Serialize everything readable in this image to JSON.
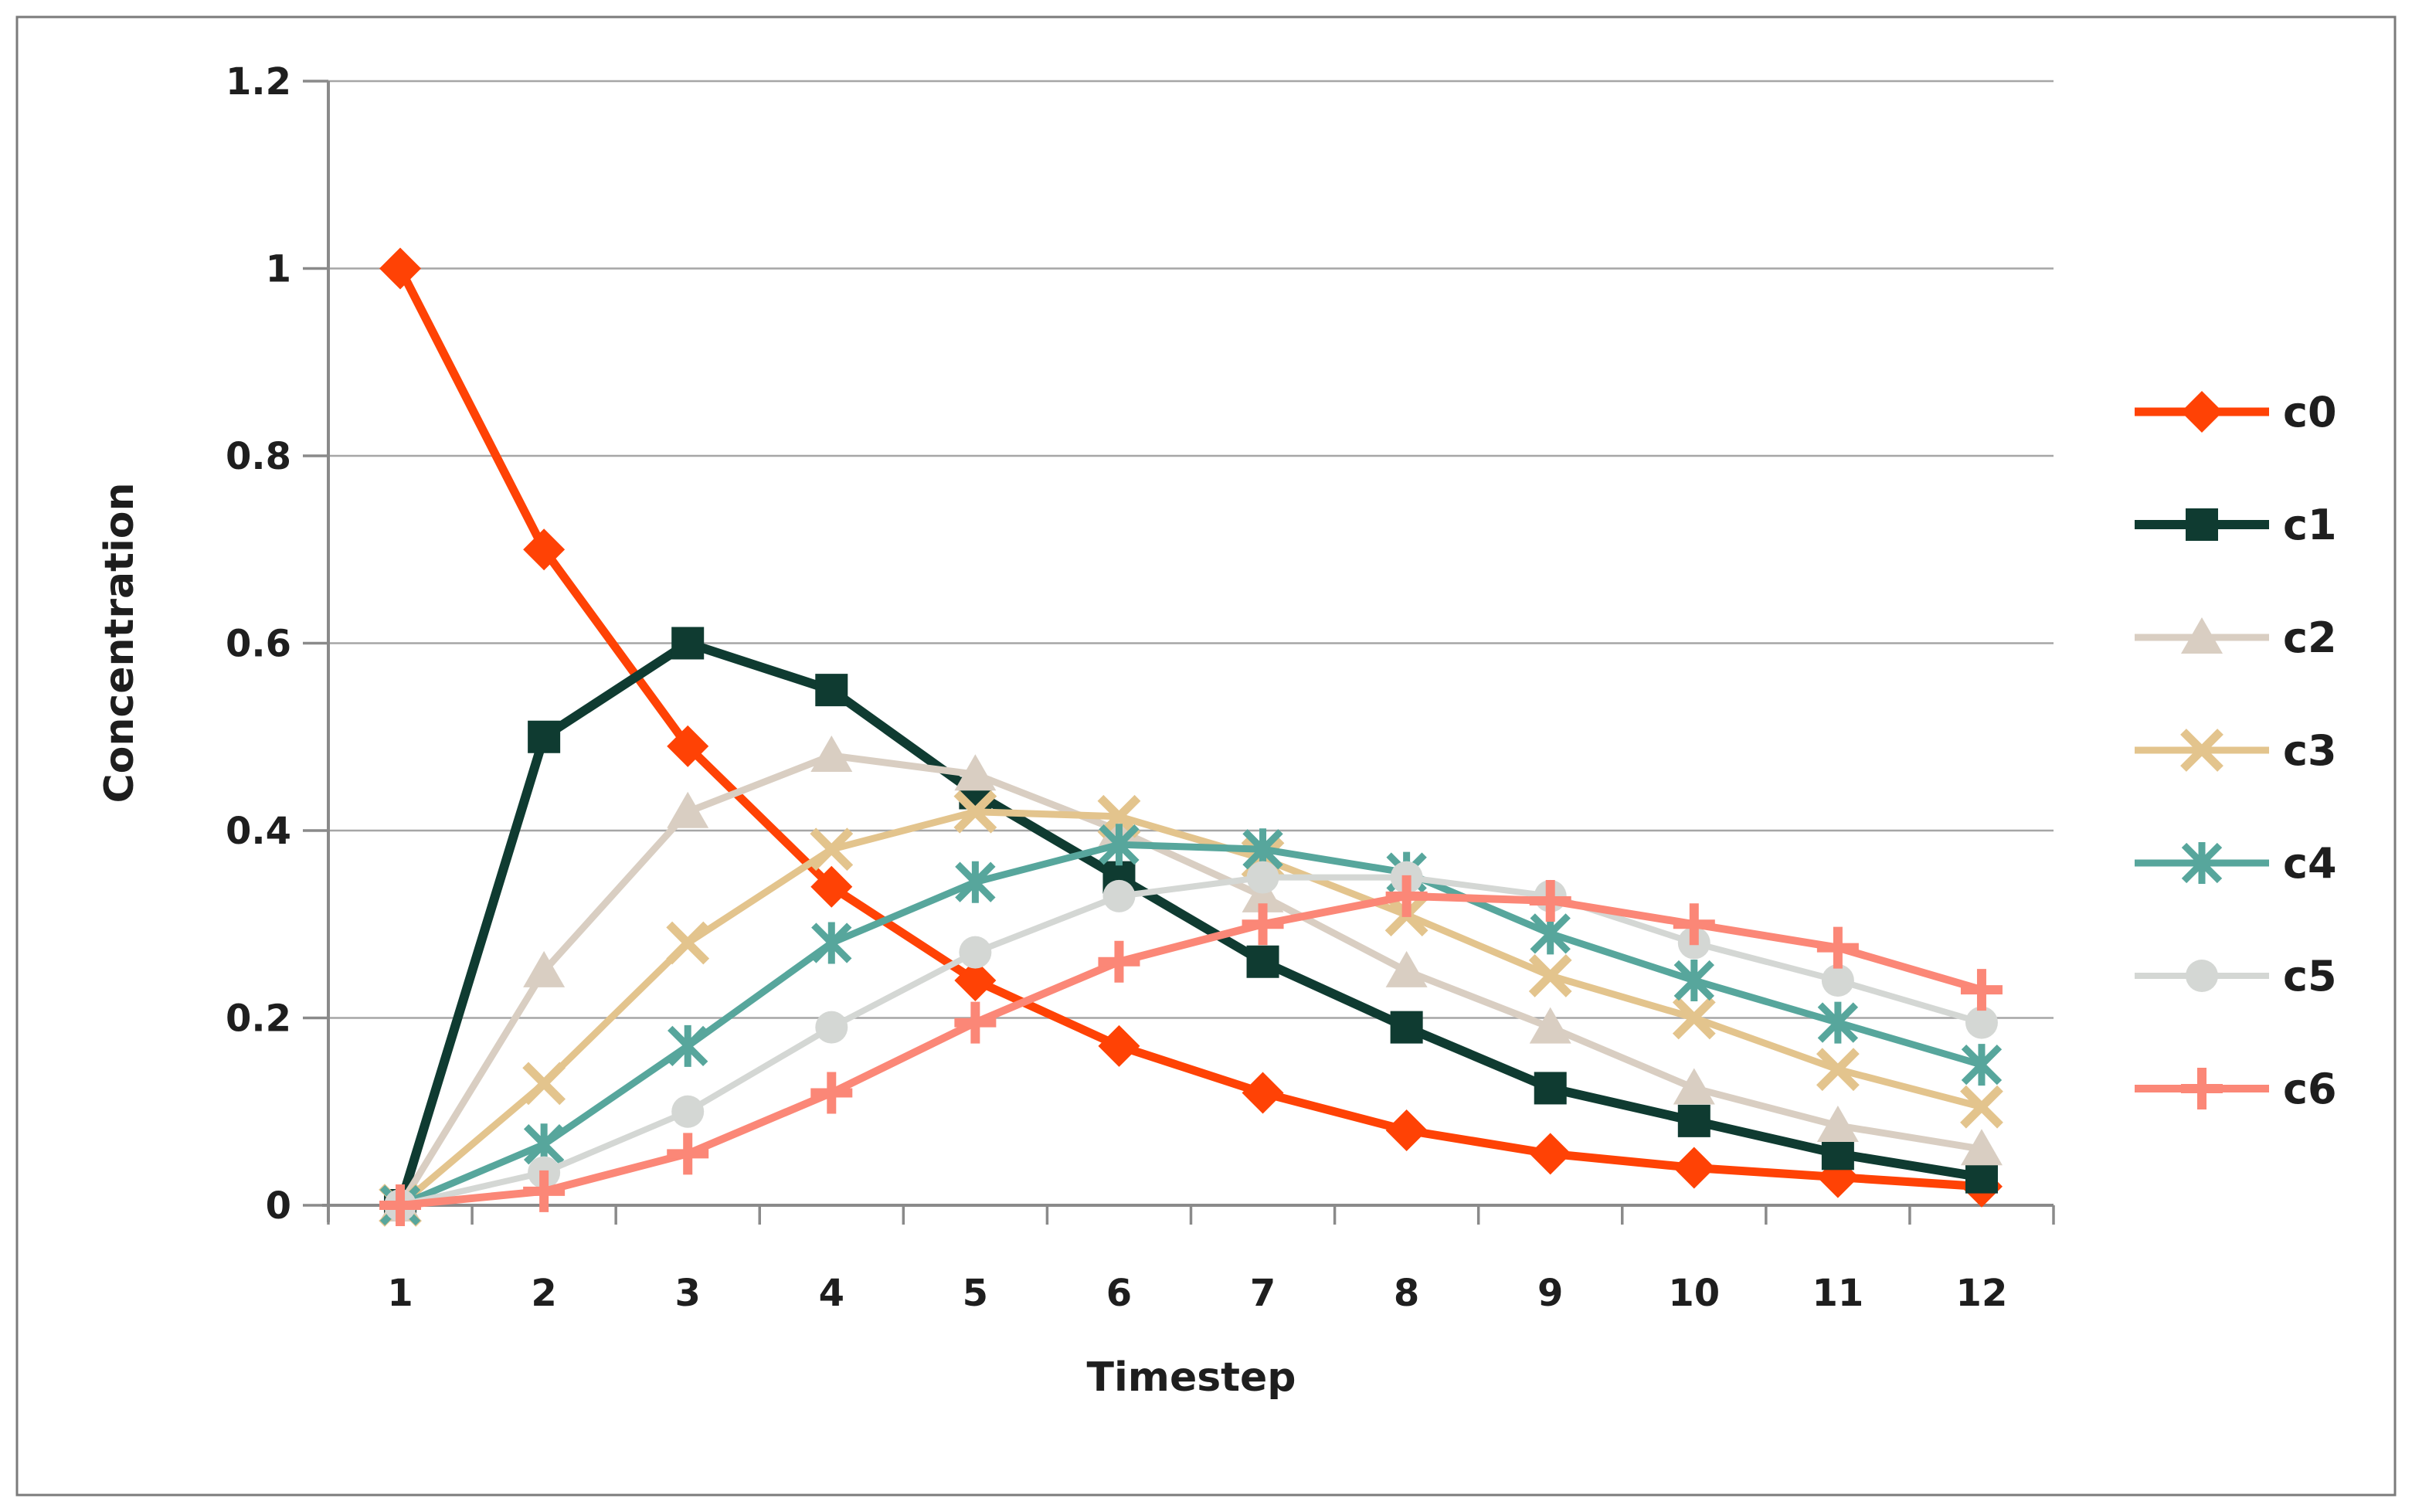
{
  "chart_data": {
    "type": "line",
    "title": "",
    "xlabel": "Timestep",
    "ylabel": "Concentration",
    "x": [
      1,
      2,
      3,
      4,
      5,
      6,
      7,
      8,
      9,
      10,
      11,
      12
    ],
    "xtick_labels": [
      "1",
      "2",
      "3",
      "4",
      "5",
      "6",
      "7",
      "8",
      "9",
      "10",
      "11",
      "12"
    ],
    "ylim": [
      0,
      1.2
    ],
    "ytick_step": 0.2,
    "ytick_labels": [
      "0",
      "0.2",
      "0.4",
      "0.6",
      "0.8",
      "1",
      "1.2"
    ],
    "grid": "horizontal-on",
    "legend_position": "right",
    "series": [
      {
        "name": "c0",
        "color": "#FF4205",
        "marker": "diamond",
        "values": [
          1.0,
          0.7,
          0.49,
          0.34,
          0.24,
          0.17,
          0.12,
          0.08,
          0.055,
          0.04,
          0.03,
          0.02
        ]
      },
      {
        "name": "c1",
        "color": "#0F3B31",
        "marker": "square",
        "values": [
          0,
          0.5,
          0.6,
          0.55,
          0.44,
          0.35,
          0.26,
          0.19,
          0.125,
          0.09,
          0.055,
          0.03
        ]
      },
      {
        "name": "c2",
        "color": "#D9CEC2",
        "marker": "triangle",
        "values": [
          0,
          0.25,
          0.42,
          0.48,
          0.46,
          0.4,
          0.33,
          0.25,
          0.19,
          0.125,
          0.085,
          0.06
        ]
      },
      {
        "name": "c3",
        "color": "#E3C48D",
        "marker": "x",
        "values": [
          0,
          0.13,
          0.28,
          0.38,
          0.42,
          0.415,
          0.37,
          0.31,
          0.245,
          0.2,
          0.145,
          0.105
        ]
      },
      {
        "name": "c4",
        "color": "#57A69C",
        "marker": "asterisk",
        "values": [
          0,
          0.065,
          0.17,
          0.28,
          0.345,
          0.385,
          0.38,
          0.355,
          0.29,
          0.24,
          0.195,
          0.15
        ]
      },
      {
        "name": "c5",
        "color": "#D4D7D4",
        "marker": "circle",
        "values": [
          0,
          0.035,
          0.1,
          0.19,
          0.27,
          0.33,
          0.35,
          0.35,
          0.33,
          0.28,
          0.24,
          0.195
        ]
      },
      {
        "name": "c6",
        "color": "#FB8777",
        "marker": "plus",
        "values": [
          0,
          0.015,
          0.055,
          0.12,
          0.195,
          0.26,
          0.3,
          0.33,
          0.325,
          0.3,
          0.275,
          0.23
        ]
      }
    ]
  },
  "frame": {
    "background": "#FFFFFF",
    "border_color": "#7B7B7B"
  },
  "axis_style": {
    "axis_color": "#8A8A8A",
    "grid_color": "#A6A6A6",
    "text_color": "#1E1E1E"
  }
}
